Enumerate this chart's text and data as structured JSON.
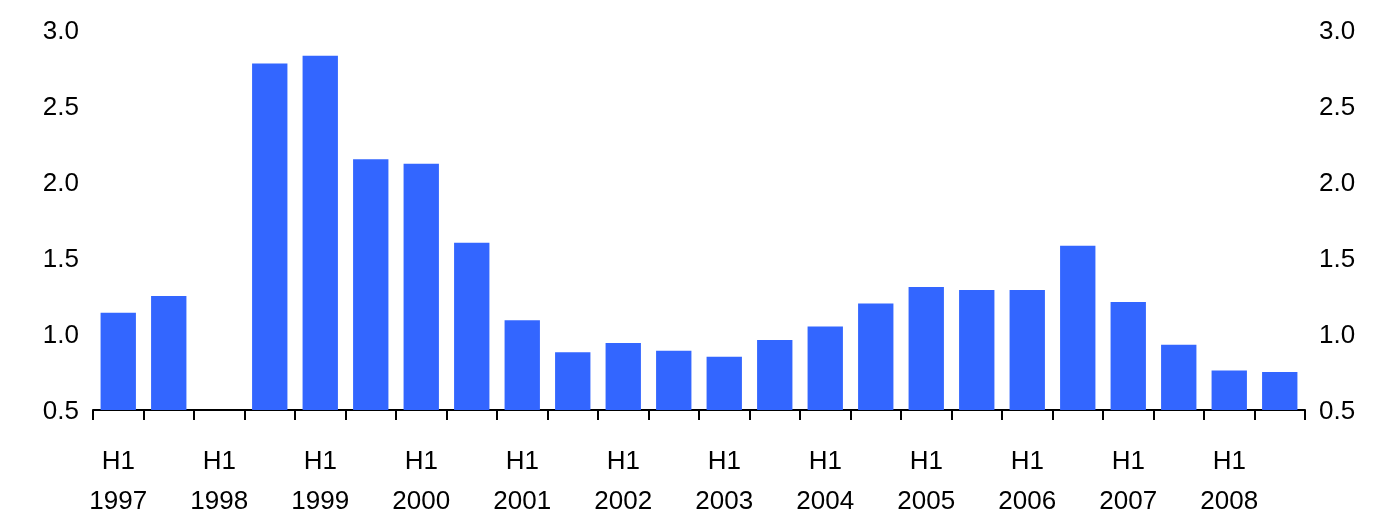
{
  "chart_data": {
    "type": "bar",
    "categories": [
      "H1\n1997",
      null,
      "H1\n1998",
      null,
      "H1\n1999",
      null,
      "H1\n2000",
      null,
      "H1\n2001",
      null,
      "H1\n2002",
      null,
      "H1\n2003",
      null,
      "H1\n2004",
      null,
      "H1\n2005",
      null,
      "H1\n2006",
      null,
      "H1\n2007",
      null,
      "H1\n2008",
      null
    ],
    "series": [
      {
        "color": "#3366ff",
        "values": [
          1.14,
          1.25,
          null,
          2.78,
          2.83,
          2.15,
          2.12,
          1.6,
          1.09,
          0.88,
          0.94,
          0.89,
          0.85,
          0.96,
          1.05,
          1.2,
          1.31,
          1.29,
          1.29,
          1.58,
          1.21,
          0.93,
          0.76,
          0.75
        ]
      }
    ],
    "ylim": [
      0.5,
      3.0
    ],
    "yticks": [
      {
        "value": 0.5,
        "label": "0.5"
      },
      {
        "value": 1.0,
        "label": "1.0"
      },
      {
        "value": 1.5,
        "label": "1.5"
      },
      {
        "value": 2.0,
        "label": "2.0"
      },
      {
        "value": 2.5,
        "label": "2.5"
      },
      {
        "value": 3.0,
        "label": "3.0"
      }
    ],
    "y2lim": [
      0.5,
      3.0
    ],
    "y2ticks": [
      {
        "value": 0.5,
        "label": "0.5"
      },
      {
        "value": 1.0,
        "label": "1.0"
      },
      {
        "value": 1.5,
        "label": "1.5"
      },
      {
        "value": 2.0,
        "label": "2.0"
      },
      {
        "value": 2.5,
        "label": "2.5"
      },
      {
        "value": 3.0,
        "label": "3.0"
      }
    ],
    "grid": false
  }
}
